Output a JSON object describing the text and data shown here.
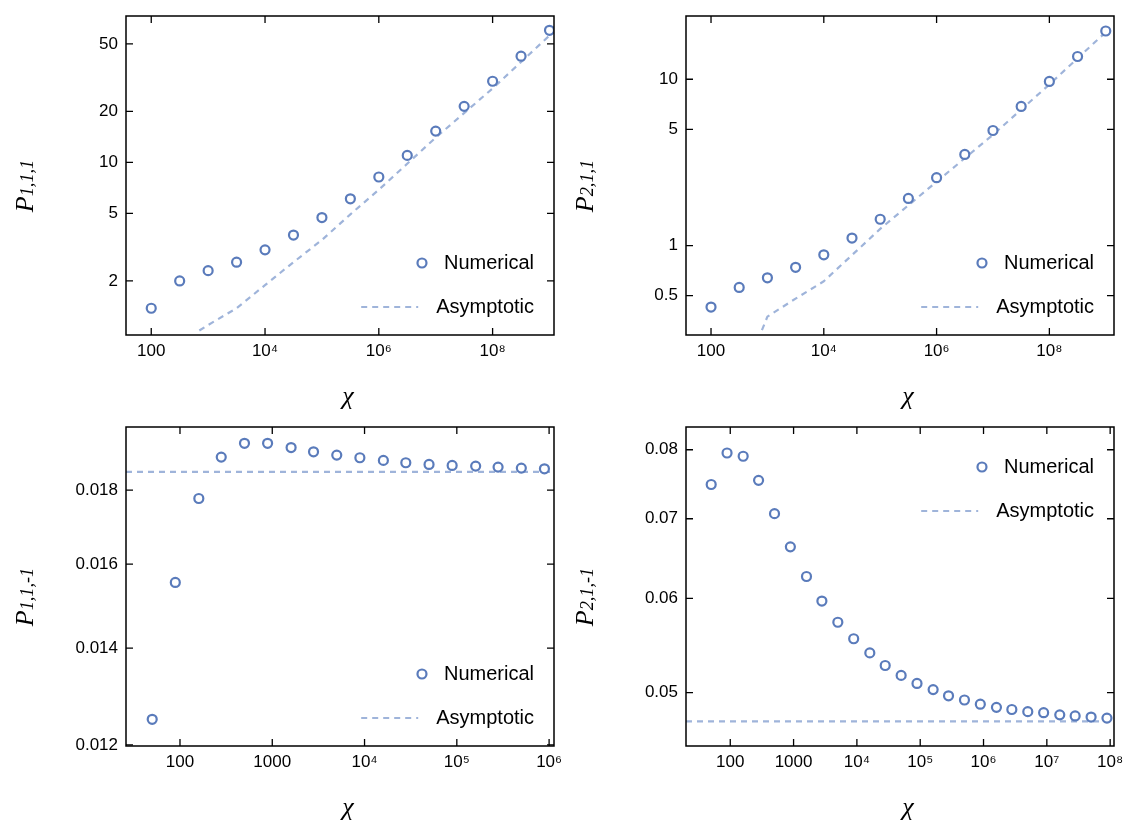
{
  "chart_data": [
    {
      "type": "scatter",
      "log": "xy",
      "xlabel": "χ",
      "ylabel": "P$_{1,1,1}$",
      "legend": "bottom right",
      "xlim": [
        36,
        1200000000
      ],
      "ylim": [
        0.96,
        73
      ],
      "xticks": [
        {
          "value": 100,
          "label": "100"
        },
        {
          "value": 10000,
          "label": "10⁴"
        },
        {
          "value": 1000000,
          "label": "10⁶"
        },
        {
          "value": 100000000,
          "label": "10⁸"
        }
      ],
      "yticks": [
        2,
        5,
        10,
        20,
        50
      ],
      "series": [
        {
          "name": "Numerical",
          "type": "scatter",
          "marker": "circle",
          "color": "#5a7bbb",
          "x": [
            100,
            316,
            1000,
            3162,
            10000,
            31623,
            100000,
            316228,
            1000000,
            3162278,
            10000000,
            31622777,
            100000000,
            316227766,
            1000000000
          ],
          "values": [
            1.38,
            2.0,
            2.3,
            2.58,
            3.05,
            3.73,
            4.73,
            6.1,
            8.2,
            11.0,
            15.3,
            21.4,
            30.1,
            42.3,
            60.1
          ]
        },
        {
          "name": "Asymptotic",
          "type": "line",
          "marker": "none",
          "line_style": "dashed",
          "color": "#9fb4da",
          "x": [
            700,
            1000,
            3162,
            10000,
            31623,
            100000,
            316228,
            1000000,
            10000000,
            100000000,
            1000000000
          ],
          "values": [
            1.02,
            1.1,
            1.38,
            1.89,
            2.58,
            3.49,
            4.94,
            6.9,
            14.0,
            27.3,
            56
          ]
        }
      ]
    },
    {
      "type": "scatter",
      "log": "xy",
      "xlabel": "χ",
      "ylabel": "P$_{2,1,1}$",
      "legend": "bottom right",
      "xlim": [
        36,
        1400000000
      ],
      "ylim": [
        0.29,
        24
      ],
      "xticks": [
        {
          "value": 100,
          "label": "100"
        },
        {
          "value": 10000,
          "label": "10⁴"
        },
        {
          "value": 1000000,
          "label": "10⁶"
        },
        {
          "value": 100000000,
          "label": "10⁸"
        }
      ],
      "yticks": [
        0.5,
        1,
        5,
        10
      ],
      "series": [
        {
          "name": "Numerical",
          "type": "scatter",
          "marker": "circle",
          "color": "#5a7bbb",
          "x": [
            100,
            316,
            1000,
            3162,
            10000,
            31623,
            100000,
            316228,
            1000000,
            3162278,
            10000000,
            31622777,
            100000000,
            316227766,
            1000000000
          ],
          "values": [
            0.427,
            0.56,
            0.64,
            0.74,
            0.88,
            1.11,
            1.44,
            1.92,
            2.56,
            3.53,
            4.92,
            6.86,
            9.7,
            13.7,
            19.5
          ]
        },
        {
          "name": "Asymptotic",
          "type": "line",
          "marker": "none",
          "line_style": "dashed",
          "color": "#9fb4da",
          "x": [
            800,
            1000,
            3162,
            10000,
            100000,
            1000000,
            10000000,
            100000000,
            1000000000
          ],
          "values": [
            0.31,
            0.374,
            0.48,
            0.61,
            1.26,
            2.42,
            4.64,
            9.3,
            19.2
          ]
        }
      ]
    },
    {
      "type": "scatter",
      "log": "xy",
      "xlabel": "χ",
      "ylabel": "P$_{1,1,-1}$",
      "legend": "bottom right",
      "xlim": [
        26,
        1130000
      ],
      "ylim": [
        0.01198,
        0.0199
      ],
      "xticks": [
        {
          "value": 100,
          "label": "100"
        },
        {
          "value": 1000,
          "label": "1000"
        },
        {
          "value": 10000,
          "label": "10⁴"
        },
        {
          "value": 100000,
          "label": "10⁵"
        },
        {
          "value": 1000000,
          "label": "10⁶"
        }
      ],
      "yticks": [
        0.012,
        0.014,
        0.016,
        0.018
      ],
      "series": [
        {
          "name": "Numerical",
          "type": "scatter",
          "marker": "circle",
          "color": "#5a7bbb",
          "x": [
            50,
            89,
            160,
            280,
            500,
            890,
            1600,
            2800,
            5000,
            8900,
            16000,
            28000,
            50000,
            89000,
            160000,
            280000,
            500000,
            890000
          ],
          "values": [
            0.0125,
            0.01554,
            0.01776,
            0.01897,
            0.01939,
            0.01939,
            0.01926,
            0.01913,
            0.01903,
            0.01895,
            0.01887,
            0.0188,
            0.01875,
            0.01872,
            0.0187,
            0.01867,
            0.01864,
            0.01862
          ]
        },
        {
          "name": "Asymptotic",
          "type": "line",
          "marker": "none",
          "line_style": "dashed",
          "color": "#9fb4da",
          "x": [
            26,
            1130000
          ],
          "values": [
            0.01853,
            0.01853
          ]
        }
      ]
    },
    {
      "type": "scatter",
      "log": "xy",
      "xlabel": "χ",
      "ylabel": "P$_{2,1,-1}$",
      "legend": "top right",
      "xlim": [
        20,
        115000000
      ],
      "ylim": [
        0.0451,
        0.0836
      ],
      "xticks": [
        {
          "value": 100,
          "label": "100"
        },
        {
          "value": 1000,
          "label": "1000"
        },
        {
          "value": 10000,
          "label": "10⁴"
        },
        {
          "value": 100000,
          "label": "10⁵"
        },
        {
          "value": 1000000,
          "label": "10⁶"
        },
        {
          "value": 10000000,
          "label": "10⁷"
        },
        {
          "value": 100000000,
          "label": "10⁸"
        }
      ],
      "yticks": [
        0.05,
        0.06,
        0.07,
        0.08
      ],
      "series": [
        {
          "name": "Numerical",
          "type": "scatter",
          "marker": "circle",
          "color": "#5a7bbb",
          "x": [
            50,
            89,
            160,
            280,
            500,
            890,
            1600,
            2800,
            5000,
            8900,
            16000,
            28000,
            50000,
            89000,
            160000,
            280000,
            500000,
            890000,
            1600000,
            2800000,
            5000000,
            8900000,
            16000000,
            28000000,
            50000000,
            89000000
          ],
          "values": [
            0.0748,
            0.0795,
            0.079,
            0.0754,
            0.0707,
            0.0663,
            0.0626,
            0.0597,
            0.0573,
            0.0555,
            0.054,
            0.0527,
            0.0517,
            0.0509,
            0.0503,
            0.0497,
            0.0493,
            0.0489,
            0.0486,
            0.0484,
            0.0482,
            0.0481,
            0.0479,
            0.0478,
            0.0477,
            0.0476
          ]
        },
        {
          "name": "Asymptotic",
          "type": "line",
          "marker": "none",
          "line_style": "dashed",
          "color": "#9fb4da",
          "x": [
            20,
            115000000
          ],
          "values": [
            0.0473,
            0.0473
          ]
        }
      ]
    }
  ]
}
